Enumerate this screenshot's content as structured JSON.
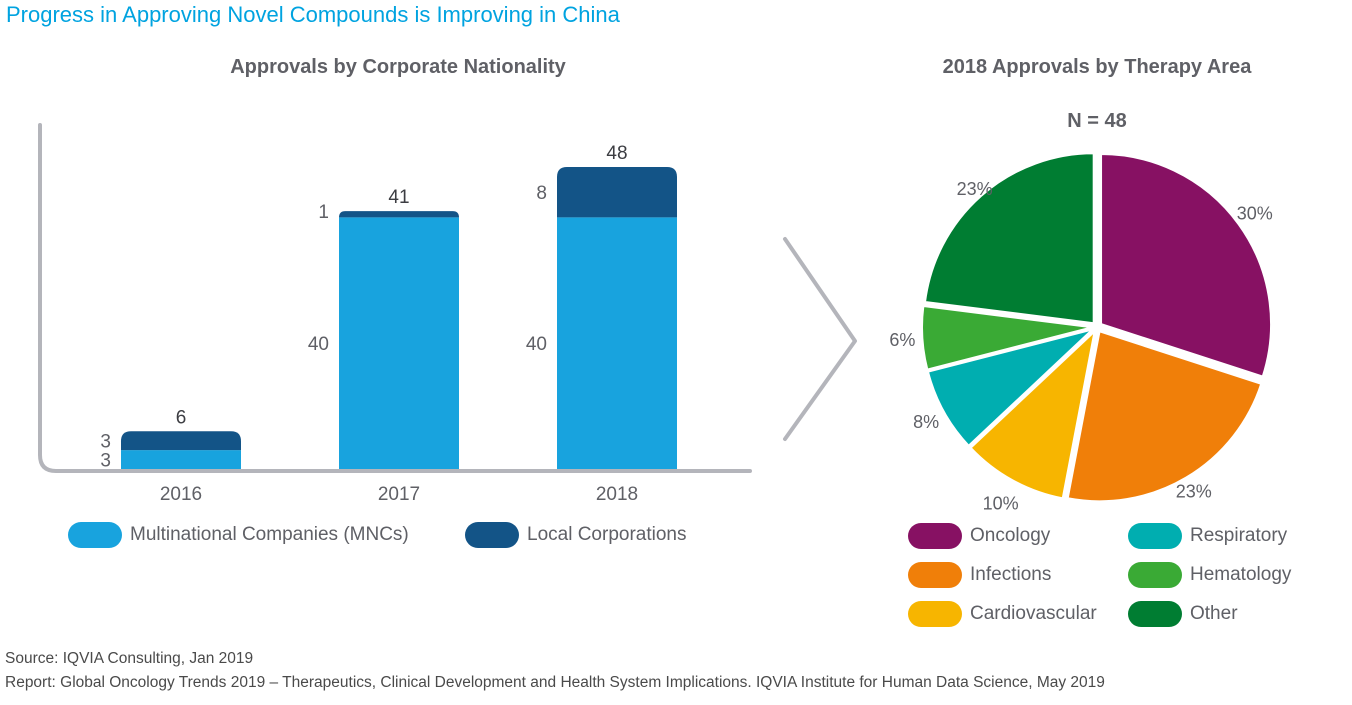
{
  "header": {
    "title": "Progress in Approving Novel Compounds is Improving in China"
  },
  "colors": {
    "mnc": "#18a3de",
    "local": "#135487",
    "axis": "#b4b5bb",
    "text": "#5f6066"
  },
  "chart_data": [
    {
      "type": "bar",
      "stacked": true,
      "title": "Approvals by Corporate Nationality",
      "categories": [
        "2016",
        "2017",
        "2018"
      ],
      "series": [
        {
          "name": "Multinational Companies (MNCs)",
          "values": [
            3,
            40,
            40
          ],
          "color": "#18a3de"
        },
        {
          "name": "Local Corporations",
          "values": [
            3,
            1,
            8
          ],
          "color": "#135487"
        }
      ],
      "totals": [
        6,
        41,
        48
      ],
      "ylim": [
        0,
        55
      ],
      "legend": "bottom"
    },
    {
      "type": "pie",
      "title": "2018 Approvals by Therapy Area",
      "annotation": "N = 48",
      "labels": [
        "Oncology",
        "Infections",
        "Cardiovascular",
        "Respiratory",
        "Hematology",
        "Other"
      ],
      "values": [
        30,
        23,
        10,
        8,
        6,
        23
      ],
      "value_labels": [
        "30%",
        "23%",
        "10%",
        "8%",
        "6%",
        "23%"
      ],
      "colors": [
        "#871163",
        "#f07f09",
        "#f7b500",
        "#00aeb0",
        "#3aaa35",
        "#007d32"
      ],
      "exploded": true,
      "legend": "bottom"
    }
  ],
  "footer": {
    "source": "Source: IQVIA Consulting, Jan 2019",
    "report": "Report: Global Oncology Trends 2019 – Therapeutics, Clinical Development and Health System Implications. IQVIA Institute for Human Data Science, May 2019"
  }
}
